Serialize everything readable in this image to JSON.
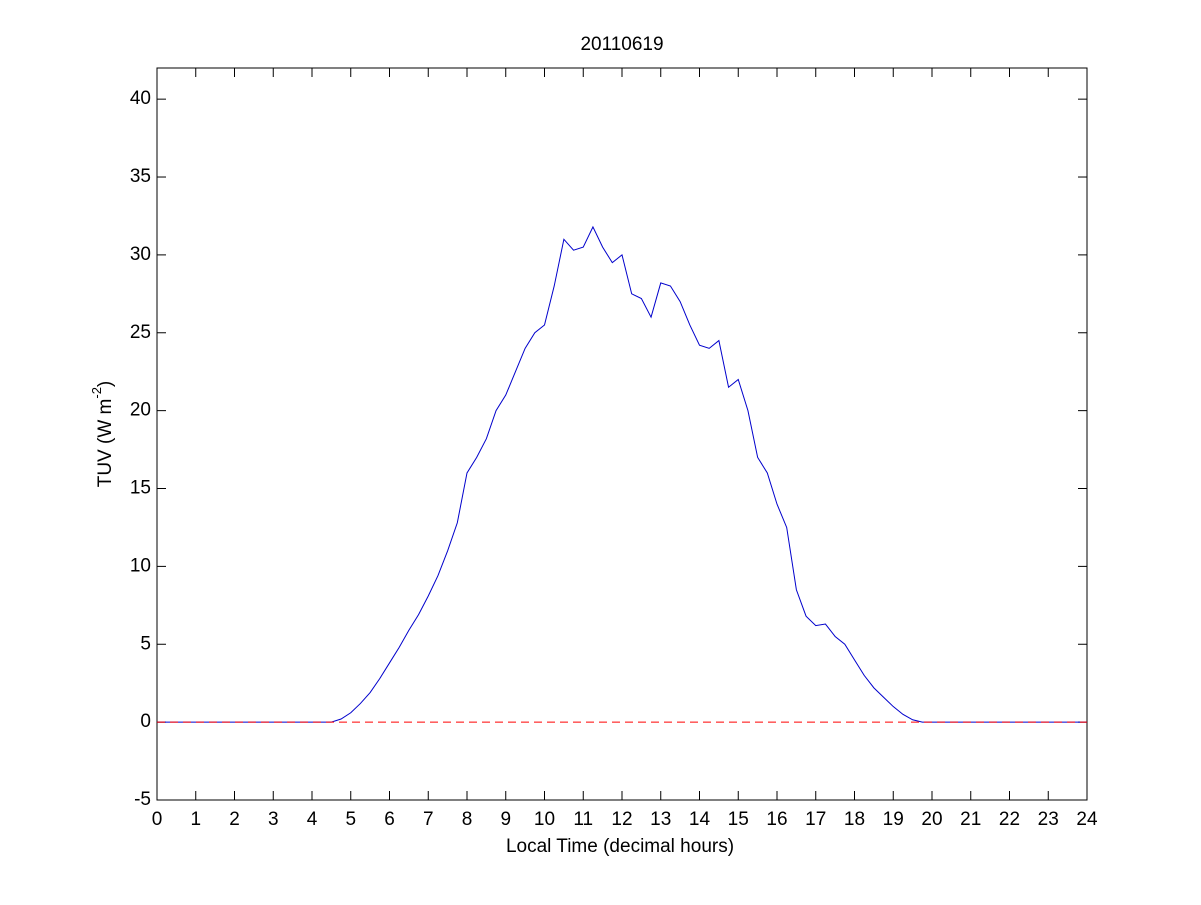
{
  "chart_data": {
    "type": "line",
    "title": "20110619",
    "xlabel": "Local Time (decimal hours)",
    "ylabel": [
      "TUV (W m",
      "-2",
      ")"
    ],
    "xlim": [
      0,
      24
    ],
    "ylim": [
      -5,
      42
    ],
    "xticks": [
      0,
      1,
      2,
      3,
      4,
      5,
      6,
      7,
      8,
      9,
      10,
      11,
      12,
      13,
      14,
      15,
      16,
      17,
      18,
      19,
      20,
      21,
      22,
      23,
      24
    ],
    "yticks": [
      -5,
      0,
      5,
      10,
      15,
      20,
      25,
      30,
      35,
      40
    ],
    "box": true,
    "series": [
      {
        "color": "#0000cc",
        "dash": false,
        "x": [
          0,
          1,
          2,
          3,
          4,
          4.5,
          4.75,
          5,
          5.25,
          5.5,
          5.75,
          6,
          6.25,
          6.5,
          6.75,
          7,
          7.25,
          7.5,
          7.75,
          8,
          8.25,
          8.5,
          8.75,
          9,
          9.25,
          9.5,
          9.75,
          10,
          10.25,
          10.5,
          10.75,
          11,
          11.25,
          11.5,
          11.75,
          12,
          12.25,
          12.5,
          12.75,
          13,
          13.25,
          13.5,
          13.75,
          14,
          14.25,
          14.5,
          14.75,
          15,
          15.25,
          15.5,
          15.75,
          16,
          16.25,
          16.5,
          16.75,
          17,
          17.25,
          17.5,
          17.75,
          18,
          18.25,
          18.5,
          18.75,
          19,
          19.25,
          19.5,
          19.75,
          20,
          21,
          22,
          23,
          24
        ],
        "values": [
          0,
          0,
          0,
          0,
          0,
          0,
          0.2,
          0.6,
          1.2,
          1.9,
          2.8,
          3.8,
          4.8,
          5.9,
          6.9,
          8.1,
          9.4,
          11.0,
          12.8,
          16.0,
          17.0,
          18.2,
          20.0,
          21.0,
          22.5,
          24.0,
          25.0,
          25.5,
          28.0,
          31.0,
          30.3,
          30.5,
          31.8,
          30.5,
          29.5,
          30.0,
          27.5,
          27.2,
          26.0,
          28.2,
          28.0,
          27.0,
          25.5,
          24.2,
          24.0,
          24.5,
          21.5,
          22.0,
          20.0,
          17.0,
          16.0,
          14.0,
          12.5,
          8.5,
          6.8,
          6.2,
          6.3,
          5.5,
          5.0,
          4.0,
          3.0,
          2.2,
          1.6,
          1.0,
          0.5,
          0.15,
          0.0,
          0,
          0,
          0,
          0,
          0
        ]
      },
      {
        "color": "#ff0000",
        "dash": true,
        "x": [
          0,
          24
        ],
        "values": [
          0,
          0
        ]
      }
    ]
  }
}
